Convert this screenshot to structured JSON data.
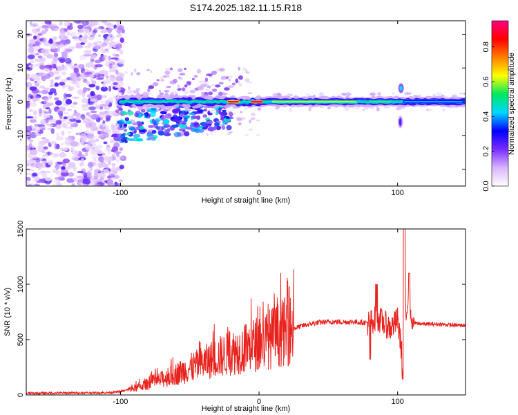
{
  "title": "S174.2025.182.11.15.R18",
  "chart_data": [
    {
      "type": "heatmap",
      "xlabel": "Height of straight line (km)",
      "ylabel": "Frequency (Hz)",
      "xlim": [
        -168,
        149
      ],
      "ylim": [
        -25,
        24
      ],
      "xticks": [
        -100,
        0,
        100
      ],
      "yticks": [
        -20,
        -10,
        0,
        10,
        20
      ],
      "grid": false,
      "colorbar": {
        "label": "Normalized spectral amplitude",
        "range": [
          0,
          0.95
        ],
        "ticks": [
          0.0,
          0.2,
          0.4,
          0.6,
          0.8
        ],
        "colormap": [
          "#ffffff",
          "#d8b4ff",
          "#7a2cff",
          "#0000ff",
          "#00d8ff",
          "#00e860",
          "#ffff00",
          "#ff8000",
          "#ff0000",
          "#ff0080"
        ]
      },
      "features": {
        "noise_region_x": [
          -168,
          -98
        ],
        "carrier_line": {
          "x": [
            -100,
            149
          ],
          "y": 0
        },
        "strong_segments": [
          {
            "x": [
              -22,
              -15
            ],
            "y": 0,
            "value": 0.9
          },
          {
            "x": [
              -5,
              2
            ],
            "y": 0,
            "value": 0.95
          },
          {
            "x": [
              10,
              70
            ],
            "y": 0,
            "value": 0.6
          },
          {
            "x": [
              80,
              95
            ],
            "y": 0,
            "value": 0.55
          },
          {
            "x": [
              105,
              149
            ],
            "y": 0,
            "value": 0.4
          }
        ],
        "spike_x": 102
      }
    },
    {
      "type": "line",
      "xlabel": "Height of straight line (km)",
      "ylabel": "SNR (10 * v/v)",
      "xlim": [
        -168,
        149
      ],
      "ylim": [
        0,
        1500
      ],
      "xticks": [
        -100,
        0,
        100
      ],
      "yticks": [
        0,
        500,
        1000,
        1500
      ],
      "grid": false,
      "series": [
        {
          "color": "#e8231e",
          "x": [
            -168,
            -140,
            -110,
            -100,
            -90,
            -80,
            -70,
            -60,
            -50,
            -40,
            -30,
            -20,
            -10,
            0,
            10,
            20,
            30,
            40,
            50,
            60,
            70,
            80,
            85,
            90,
            95,
            100,
            103,
            104,
            105,
            106,
            108,
            110,
            120,
            130,
            140,
            149
          ],
          "y": [
            15,
            18,
            20,
            30,
            60,
            100,
            140,
            190,
            240,
            290,
            340,
            380,
            420,
            470,
            520,
            580,
            620,
            650,
            660,
            660,
            660,
            650,
            700,
            650,
            600,
            680,
            400,
            200,
            1500,
            700,
            900,
            650,
            640,
            640,
            630,
            630
          ]
        }
      ]
    }
  ]
}
